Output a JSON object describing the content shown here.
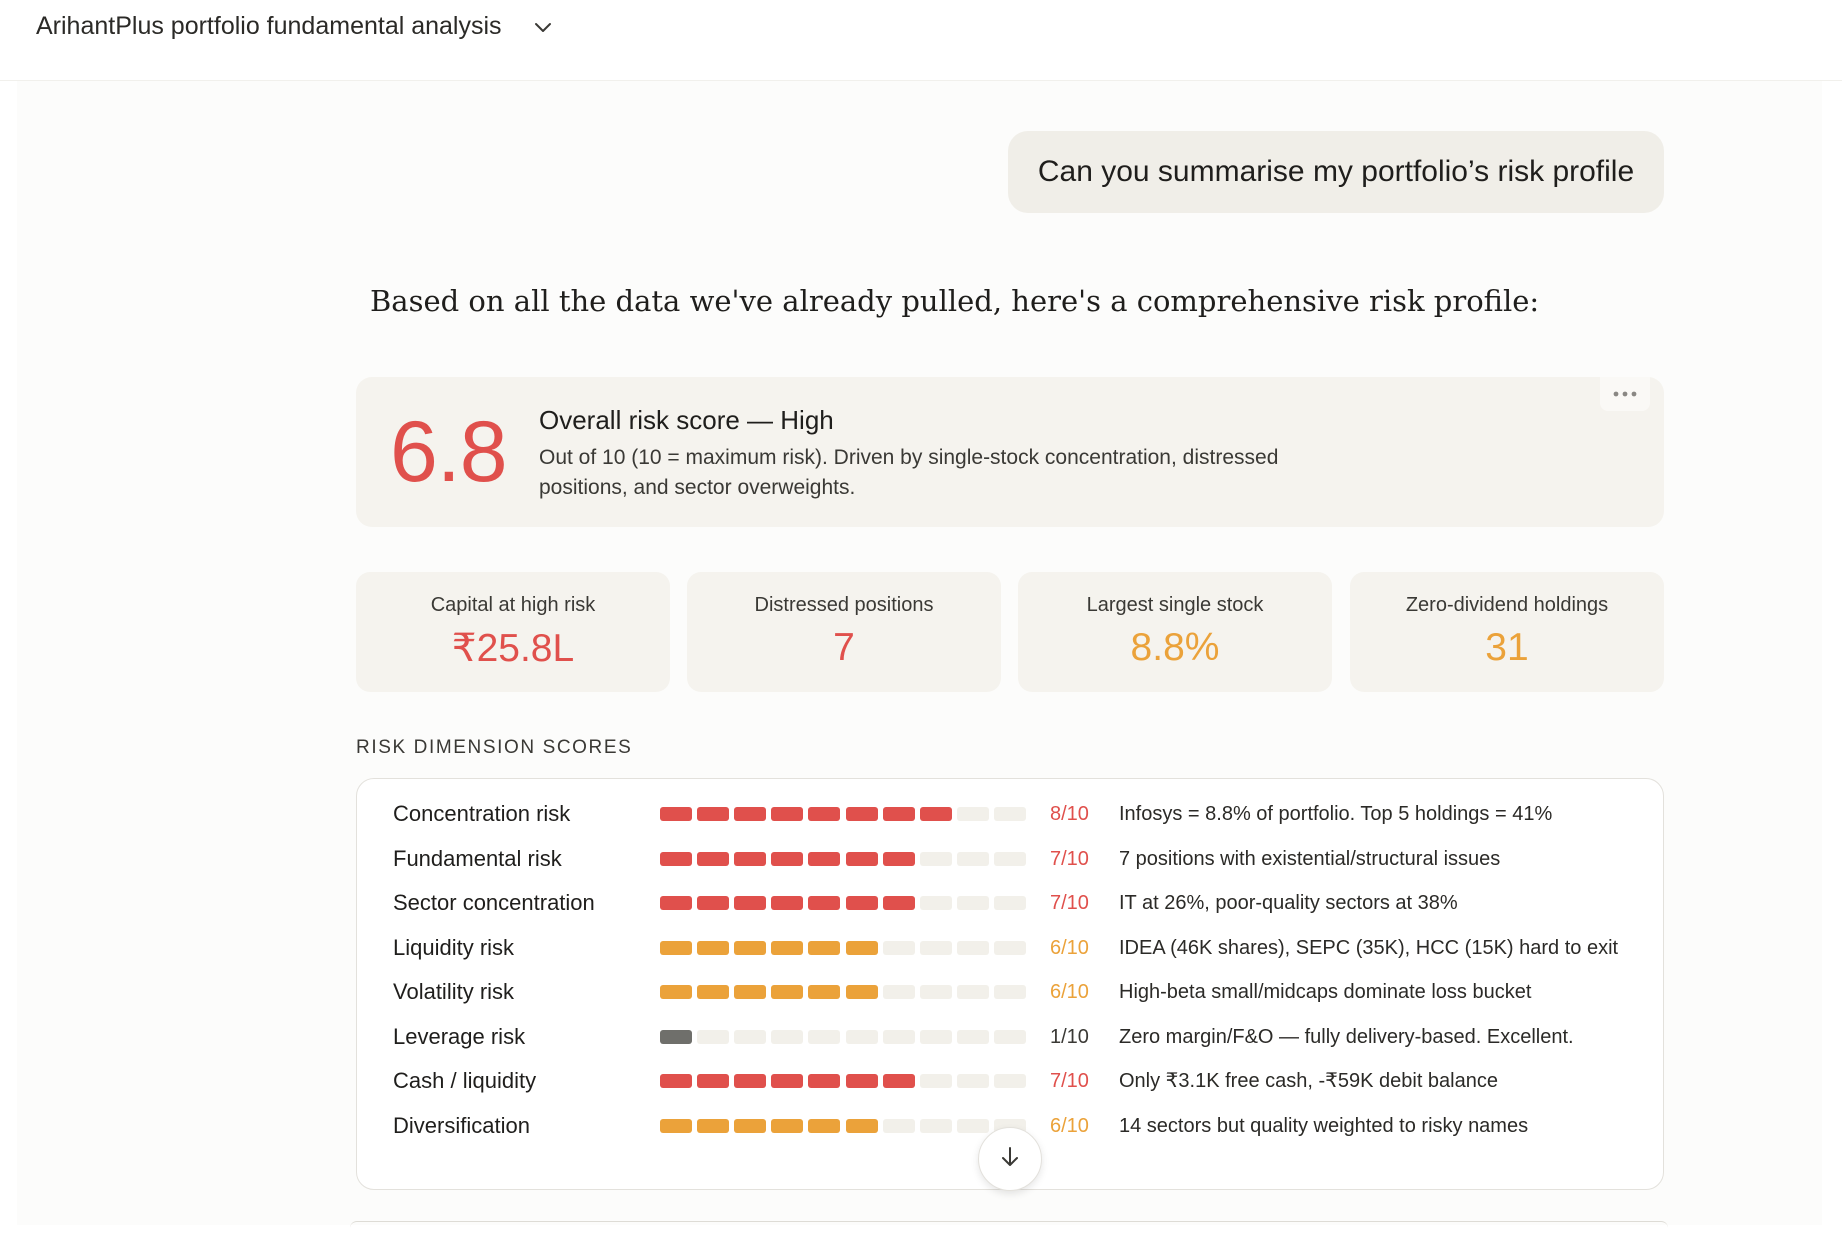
{
  "header": {
    "title": "ArihantPlus portfolio fundamental analysis",
    "chevron_icon": "chevron-down-icon"
  },
  "user_message": "Can you summarise my portfolio’s risk profile",
  "assistant_intro": "Based on all the data we've already pulled, here's a comprehensive risk profile:",
  "overall_risk": {
    "score": "6.8",
    "title": "Overall risk score — High",
    "description": "Out of 10 (10 = maximum risk). Driven by single-stock concentration, distressed positions, and sector overweights.",
    "more_icon": "more-horizontal-icon"
  },
  "stats": [
    {
      "label": "Capital at high risk",
      "value": "₹25.8L",
      "color": "#e0504c"
    },
    {
      "label": "Distressed positions",
      "value": "7",
      "color": "#e0504c"
    },
    {
      "label": "Largest single stock",
      "value": "8.8%",
      "color": "#eba23a"
    },
    {
      "label": "Zero-dividend holdings",
      "value": "31",
      "color": "#eba23a"
    }
  ],
  "section_title": "RISK DIMENSION SCORES",
  "colors": {
    "red": "#e0504c",
    "orange": "#eba23a",
    "gray": "#6f6f6b",
    "empty": "#f2f0ea"
  },
  "dimensions": [
    {
      "name": "Concentration risk",
      "score": 8,
      "score_label": "8/10",
      "level": "red",
      "note": "Infosys = 8.8% of portfolio. Top 5 holdings = 41%"
    },
    {
      "name": "Fundamental risk",
      "score": 7,
      "score_label": "7/10",
      "level": "red",
      "note": "7 positions with existential/structural issues"
    },
    {
      "name": "Sector concentration",
      "score": 7,
      "score_label": "7/10",
      "level": "red",
      "note": "IT at 26%, poor-quality sectors at 38%"
    },
    {
      "name": "Liquidity risk",
      "score": 6,
      "score_label": "6/10",
      "level": "orange",
      "note": "IDEA (46K shares), SEPC (35K), HCC (15K) hard to exit"
    },
    {
      "name": "Volatility risk",
      "score": 6,
      "score_label": "6/10",
      "level": "orange",
      "note": "High-beta small/midcaps dominate loss bucket"
    },
    {
      "name": "Leverage risk",
      "score": 1,
      "score_label": "1/10",
      "level": "gray",
      "note": "Zero margin/F&O — fully delivery-based. Excellent."
    },
    {
      "name": "Cash / liquidity",
      "score": 7,
      "score_label": "7/10",
      "level": "red",
      "note": "Only ₹3.1K free cash, -₹59K debit balance"
    },
    {
      "name": "Diversification",
      "score": 6,
      "score_label": "6/10",
      "level": "orange",
      "note": "14 sectors but quality weighted to risky names"
    }
  ],
  "scroll_icon": "arrow-down-icon"
}
